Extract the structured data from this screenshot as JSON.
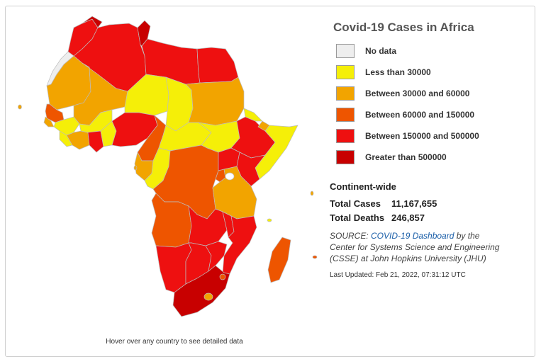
{
  "legend": {
    "title": "Covid-19 Cases in Africa",
    "items": [
      {
        "label": "No data",
        "color": "#eeeeee"
      },
      {
        "label": "Less than 30000",
        "color": "#f5ef08"
      },
      {
        "label": "Between 30000 and 60000",
        "color": "#f2a400"
      },
      {
        "label": "Between 60000 and 150000",
        "color": "#ee5500"
      },
      {
        "label": "Between 150000 and 500000",
        "color": "#ee1010"
      },
      {
        "label": "Greater than 500000",
        "color": "#c80000"
      }
    ]
  },
  "stats": {
    "heading": "Continent-wide",
    "total_cases_label": "Total Cases",
    "total_cases_value": "11,167,655",
    "total_deaths_label": "Total Deaths",
    "total_deaths_value": "246,857"
  },
  "source": {
    "prefix": "SOURCE: ",
    "link_text": "COVID-19 Dashboard",
    "suffix": " by the Center for Systems Science and Engineering (CSSE) at John Hopkins University (JHU)"
  },
  "last_updated": "Last Updated: Feb 21, 2022, 07:31:12 UTC",
  "hover_hint": "Hover over any country to see detailed data"
}
